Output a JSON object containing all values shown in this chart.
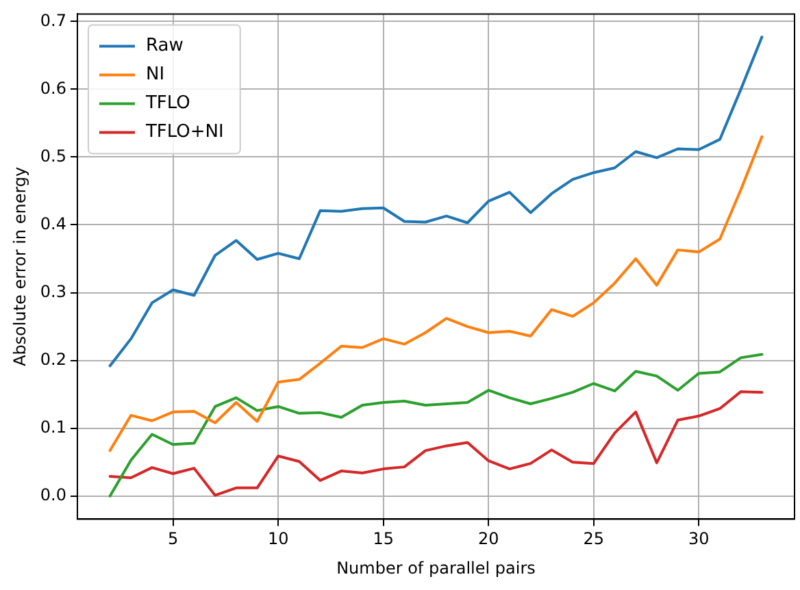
{
  "chart_data": {
    "type": "line",
    "xlabel": "Number of parallel pairs",
    "ylabel": "Absolute error in energy",
    "x": [
      2,
      3,
      4,
      5,
      6,
      7,
      8,
      9,
      10,
      11,
      12,
      13,
      14,
      15,
      16,
      17,
      18,
      19,
      20,
      21,
      22,
      23,
      24,
      25,
      26,
      27,
      28,
      29,
      30,
      31,
      32,
      33
    ],
    "series": [
      {
        "name": "Raw",
        "color": "#1f77b4",
        "values": [
          0.192,
          0.232,
          0.285,
          0.304,
          0.296,
          0.355,
          0.377,
          0.349,
          0.358,
          0.35,
          0.421,
          0.42,
          0.424,
          0.425,
          0.405,
          0.404,
          0.413,
          0.403,
          0.435,
          0.448,
          0.418,
          0.446,
          0.467,
          0.477,
          0.484,
          0.508,
          0.499,
          0.512,
          0.511,
          0.526,
          0.6,
          0.677
        ]
      },
      {
        "name": "NI",
        "color": "#ff7f0e",
        "values": [
          0.067,
          0.119,
          0.111,
          0.124,
          0.125,
          0.108,
          0.138,
          0.11,
          0.168,
          0.172,
          0.196,
          0.221,
          0.219,
          0.232,
          0.224,
          0.241,
          0.262,
          0.25,
          0.241,
          0.243,
          0.236,
          0.275,
          0.265,
          0.285,
          0.314,
          0.35,
          0.311,
          0.363,
          0.36,
          0.379,
          0.452,
          0.53
        ]
      },
      {
        "name": "TFLO",
        "color": "#2ca02c",
        "values": [
          0.0,
          0.053,
          0.091,
          0.076,
          0.078,
          0.132,
          0.145,
          0.126,
          0.132,
          0.122,
          0.123,
          0.116,
          0.134,
          0.138,
          0.14,
          0.134,
          0.136,
          0.138,
          0.156,
          0.145,
          0.136,
          0.144,
          0.153,
          0.166,
          0.155,
          0.184,
          0.177,
          0.156,
          0.181,
          0.183,
          0.204,
          0.209
        ]
      },
      {
        "name": "TFLO+NI",
        "color": "#d62728",
        "values": [
          0.029,
          0.027,
          0.042,
          0.033,
          0.041,
          0.001,
          0.012,
          0.012,
          0.059,
          0.051,
          0.023,
          0.037,
          0.034,
          0.04,
          0.043,
          0.067,
          0.074,
          0.079,
          0.052,
          0.04,
          0.048,
          0.068,
          0.05,
          0.048,
          0.093,
          0.124,
          0.049,
          0.112,
          0.118,
          0.129,
          0.154,
          0.153
        ]
      }
    ],
    "xlim": [
      0.45,
      34.55
    ],
    "xticks": [
      5,
      10,
      15,
      20,
      25,
      30
    ],
    "ylim": [
      -0.034,
      0.711
    ],
    "yticks": [
      {
        "value": 0,
        "label": "0.0"
      },
      {
        "value": 0.1,
        "label": "0.1"
      },
      {
        "value": 0.2,
        "label": "0.2"
      },
      {
        "value": 0.3,
        "label": "0.3"
      },
      {
        "value": 0.4,
        "label": "0.4"
      },
      {
        "value": 0.5,
        "label": "0.5"
      },
      {
        "value": 0.6,
        "label": "0.6"
      },
      {
        "value": 0.7,
        "label": "0.7"
      }
    ],
    "grid": true,
    "legend": "top left",
    "marker": "none",
    "line_style": "solid"
  }
}
